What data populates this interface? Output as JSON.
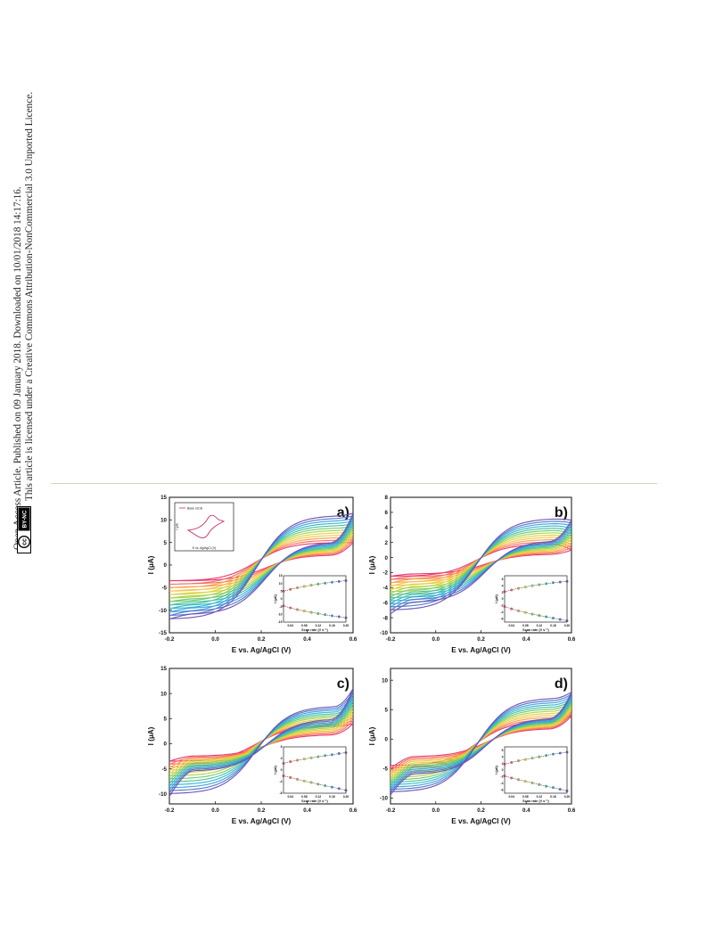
{
  "side_notice": {
    "line1": "Open Access Article. Published on 09 January 2018. Downloaded on 10/01/2018 14:17:16.",
    "line2": "This article is licensed under a Creative Commons Attribution-NonCommercial 3.0 Unported Licence.",
    "badge_cc": "cc",
    "badge_license": "BY-NC"
  },
  "figure": {
    "panels": [
      {
        "label": "a)",
        "ylabel": "I (µA)",
        "xlabel": "E vs. Ag/AgCl (V)"
      },
      {
        "label": "b)",
        "ylabel": "I (µA)",
        "xlabel": "E vs. Ag/AgCl (V)"
      },
      {
        "label": "c)",
        "ylabel": "I (µA)",
        "xlabel": "E vs. Ag/AgCl (V)"
      },
      {
        "label": "d)",
        "ylabel": "I (µA)",
        "xlabel": "E vs. Ag/AgCl (V)"
      }
    ],
    "inset_label": "Scan rate (V s⁻¹)",
    "inset_ylabel": "I (µA)",
    "bare_inset": {
      "legend": "Bare GCE",
      "xlabel": "E vs. Ag/AgCl (V)",
      "ylabel": "I (µA)"
    }
  },
  "chart_data": [
    {
      "type": "line",
      "panel": "a)",
      "xlabel": "E vs. Ag/AgCl (V)",
      "ylabel": "I (µA)",
      "xlim": [
        -0.2,
        0.6
      ],
      "ylim": [
        -15,
        15
      ],
      "xticks": [
        -0.2,
        0.0,
        0.2,
        0.4,
        0.6
      ],
      "yticks": [
        -15,
        -10,
        -5,
        0,
        5,
        10,
        15
      ],
      "curves": {
        "count": 12,
        "upper_start": [
          -3.5,
          -12
        ],
        "upper_end": [
          5,
          11.5
        ],
        "lower_start": [
          -3.5,
          -12
        ],
        "lower_end": [
          5,
          11.5
        ],
        "anodic_peak_x": 0.38,
        "cathodic_peak_x": 0.12,
        "upper_plateau": [
          5,
          11
        ],
        "lower_plateau": [
          -3.5,
          -11
        ]
      },
      "inset": {
        "xlabel": "Scan rate (V s⁻¹)",
        "ylabel": "I (µA)",
        "xticks": [
          0.04,
          0.08,
          0.12,
          0.16,
          0.2
        ],
        "yticks": [
          -15,
          -10,
          -5,
          0,
          5,
          10,
          15
        ],
        "xlim": [
          0.02,
          0.2
        ],
        "ylim": [
          -15,
          15
        ],
        "x": [
          0.02,
          0.04,
          0.06,
          0.08,
          0.1,
          0.12,
          0.14,
          0.16,
          0.18,
          0.2
        ],
        "anodic": [
          5,
          6.2,
          7.2,
          8.1,
          8.9,
          9.6,
          10.2,
          10.8,
          11.3,
          11.8
        ],
        "cathodic": [
          -4.5,
          -5.8,
          -6.9,
          -7.8,
          -8.7,
          -9.5,
          -10.2,
          -10.9,
          -11.5,
          -12.2
        ]
      },
      "bare_inset": {
        "legend": "Bare GCE"
      }
    },
    {
      "type": "line",
      "panel": "b)",
      "xlabel": "E vs. Ag/AgCl (V)",
      "ylabel": "I (µA)",
      "xlim": [
        -0.2,
        0.6
      ],
      "ylim": [
        -10,
        8
      ],
      "xticks": [
        -0.2,
        0.0,
        0.2,
        0.4,
        0.6
      ],
      "yticks": [
        -10,
        -8,
        -6,
        -4,
        -2,
        0,
        2,
        4,
        6,
        8
      ],
      "curves": {
        "count": 12,
        "upper_start": [
          -2.5,
          -7
        ],
        "upper_end": [
          1,
          5
        ],
        "lower_start": [
          -2.5,
          -7.5
        ],
        "lower_end": [
          1,
          5
        ],
        "anodic_peak_x": 0.35,
        "cathodic_peak_x": 0.15,
        "upper_plateau": [
          1.8,
          5.2
        ],
        "lower_plateau": [
          -2.2,
          -6
        ]
      },
      "inset": {
        "xlabel": "Scan rate (V s⁻¹)",
        "ylabel": "I (µA)",
        "xticks": [
          0.04,
          0.08,
          0.12,
          0.16,
          0.2
        ],
        "yticks": [
          -6,
          -4,
          -2,
          0,
          2,
          4,
          6
        ],
        "xlim": [
          0.02,
          0.2
        ],
        "ylim": [
          -7,
          7
        ],
        "x": [
          0.02,
          0.04,
          0.06,
          0.08,
          0.1,
          0.12,
          0.14,
          0.16,
          0.18,
          0.2
        ],
        "anodic": [
          2.2,
          2.7,
          3.2,
          3.6,
          4.0,
          4.3,
          4.6,
          4.9,
          5.1,
          5.3
        ],
        "cathodic": [
          -2.3,
          -3.0,
          -3.6,
          -4.1,
          -4.6,
          -5.0,
          -5.4,
          -5.8,
          -6.2,
          -6.6
        ]
      }
    },
    {
      "type": "line",
      "panel": "c)",
      "xlabel": "E vs. Ag/AgCl (V)",
      "ylabel": "I (µA)",
      "xlim": [
        -0.2,
        0.6
      ],
      "ylim": [
        -12,
        15
      ],
      "xticks": [
        -0.2,
        0.0,
        0.2,
        0.4,
        0.6
      ],
      "yticks": [
        -10,
        -5,
        0,
        5,
        10,
        15
      ],
      "curves": {
        "count": 12,
        "upper_start": [
          -3.5,
          -10
        ],
        "upper_end": [
          4,
          11
        ],
        "lower_start": [
          -3.5,
          -10.5
        ],
        "lower_end": [
          4,
          11
        ],
        "anodic_peak_x": 0.38,
        "cathodic_peak_x": 0.12,
        "upper_plateau": [
          3.5,
          7.5
        ],
        "lower_plateau": [
          -2.5,
          -5.5
        ]
      },
      "inset": {
        "xlabel": "Scan rate (V s⁻¹)",
        "ylabel": "I (µA)",
        "xticks": [
          0.04,
          0.08,
          0.12,
          0.16,
          0.2
        ],
        "yticks": [
          -8,
          -4,
          0,
          4,
          8
        ],
        "xlim": [
          0.02,
          0.2
        ],
        "ylim": [
          -8,
          8
        ],
        "x": [
          0.02,
          0.04,
          0.06,
          0.08,
          0.1,
          0.12,
          0.14,
          0.16,
          0.18,
          0.2
        ],
        "anodic": [
          2.3,
          2.9,
          3.4,
          3.8,
          4.2,
          4.6,
          5.0,
          5.3,
          5.7,
          6.0
        ],
        "cathodic": [
          -2.0,
          -2.6,
          -3.2,
          -3.8,
          -4.3,
          -4.9,
          -5.4,
          -5.9,
          -6.4,
          -7.0
        ]
      }
    },
    {
      "type": "line",
      "panel": "d)",
      "xlabel": "E vs. Ag/AgCl (V)",
      "ylabel": "I (µA)",
      "xlim": [
        -0.2,
        0.6
      ],
      "ylim": [
        -11,
        12
      ],
      "xticks": [
        -0.2,
        0.0,
        0.2,
        0.4,
        0.6
      ],
      "yticks": [
        -10,
        -5,
        0,
        5,
        10
      ],
      "curves": {
        "count": 12,
        "upper_start": [
          -4.5,
          -9
        ],
        "upper_end": [
          4,
          8
        ],
        "lower_start": [
          -5,
          -9.5
        ],
        "lower_end": [
          4,
          8
        ],
        "anodic_peak_x": 0.38,
        "cathodic_peak_x": 0.12,
        "upper_plateau": [
          3,
          7
        ],
        "lower_plateau": [
          -3,
          -6
        ]
      },
      "inset": {
        "xlabel": "Scan rate (V s⁻¹)",
        "ylabel": "I (µA)",
        "xticks": [
          0.04,
          0.08,
          0.12,
          0.16,
          0.2
        ],
        "yticks": [
          -6,
          -4,
          -2,
          0,
          2,
          4,
          6
        ],
        "xlim": [
          0.02,
          0.2
        ],
        "ylim": [
          -7,
          7
        ],
        "x": [
          0.02,
          0.04,
          0.06,
          0.08,
          0.1,
          0.12,
          0.14,
          0.16,
          0.18,
          0.2
        ],
        "anodic": [
          1.8,
          2.3,
          2.8,
          3.2,
          3.6,
          4.0,
          4.4,
          4.8,
          5.1,
          5.4
        ],
        "cathodic": [
          -1.8,
          -2.4,
          -2.9,
          -3.4,
          -3.9,
          -4.4,
          -4.9,
          -5.3,
          -5.8,
          -6.3
        ]
      }
    }
  ],
  "colors": {
    "curves": [
      "#e8336b",
      "#f26a5a",
      "#f89a48",
      "#f7c341",
      "#d8d43c",
      "#a6d24a",
      "#6ec86a",
      "#3fbf9a",
      "#2fb6c8",
      "#3a9ee0",
      "#4a76c8",
      "#6a4fb0"
    ],
    "inset_line": "#000000",
    "bare": "#c0306a",
    "rule": "#d3d3c2"
  }
}
